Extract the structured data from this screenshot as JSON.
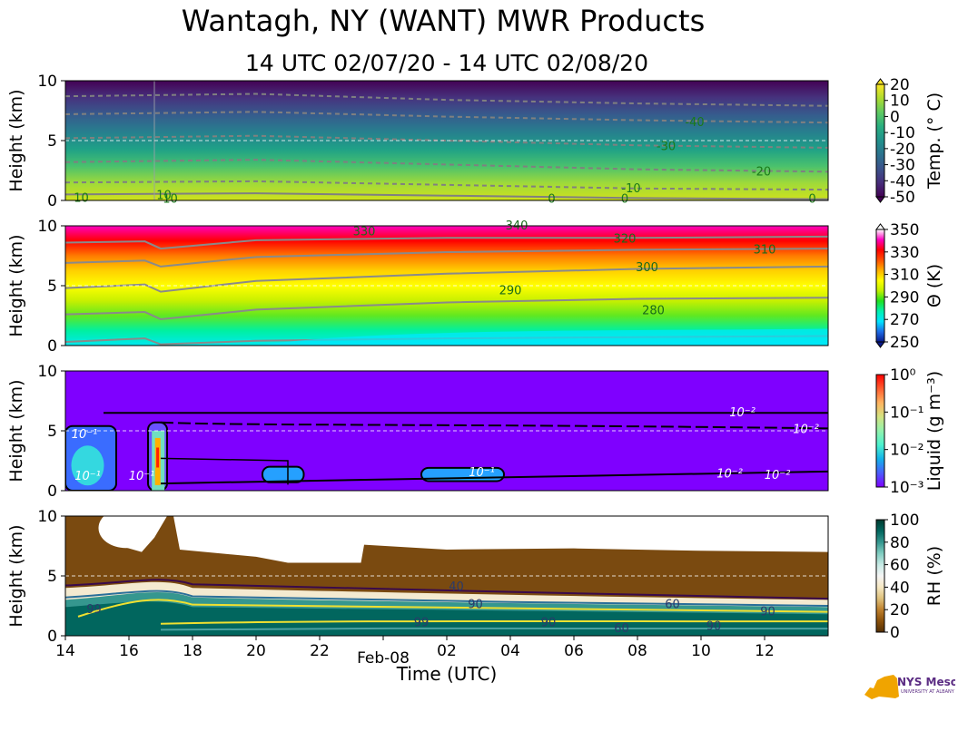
{
  "figure": {
    "title": "Wantagh, NY (WANT) MWR Products",
    "subtitle": "14 UTC 02/07/20 - 14 UTC 02/08/20",
    "xlabel": "Time (UTC)",
    "xticks": [
      "14",
      "16",
      "18",
      "20",
      "22",
      "Feb-08",
      "02",
      "04",
      "06",
      "08",
      "10",
      "12"
    ],
    "logo_text": "NYS Mesonet",
    "logo_subtext": "UNIVERSITY AT ALBANY"
  },
  "chart_data": [
    {
      "type": "heatmap",
      "id": "temperature",
      "ylabel": "Height (km)",
      "yticks": [
        "0",
        "5",
        "10"
      ],
      "ylim": [
        0,
        10
      ],
      "colorbar_label": "Temp. (° C)",
      "colorbar_ticks": [
        "20",
        "10",
        "0",
        "-10",
        "-20",
        "-30",
        "-40",
        "-50"
      ],
      "colorbar_range": [
        -50,
        20
      ],
      "colors": [
        "#440154",
        "#472d7b",
        "#3b528b",
        "#2c728e",
        "#21918c",
        "#28ae80",
        "#5ec962",
        "#addc30",
        "#fde725"
      ],
      "contour_labels": [
        {
          "text": "10",
          "t": 0.5,
          "h": 0.2
        },
        {
          "text": "10",
          "t": 3.1,
          "h": 0.4
        },
        {
          "text": "10",
          "t": 3.3,
          "h": 0.1
        },
        {
          "text": "0",
          "t": 15.3,
          "h": 0.1
        },
        {
          "text": "0",
          "t": 17.6,
          "h": 0.1
        },
        {
          "text": "0",
          "t": 23.5,
          "h": 0.1
        },
        {
          "text": "-10",
          "t": 17.8,
          "h": 1.0
        },
        {
          "text": "-20",
          "t": 21.9,
          "h": 2.4
        },
        {
          "text": "-30",
          "t": 18.9,
          "h": 4.5
        },
        {
          "text": "-40",
          "t": 19.8,
          "h": 6.5
        }
      ]
    },
    {
      "type": "heatmap",
      "id": "theta",
      "ylabel": "Height (km)",
      "yticks": [
        "0",
        "5",
        "10"
      ],
      "ylim": [
        0,
        10
      ],
      "colorbar_label": "Θ (K)",
      "colorbar_ticks": [
        "350",
        "330",
        "310",
        "290",
        "270",
        "250"
      ],
      "colorbar_range": [
        250,
        360
      ],
      "colors": [
        "#0a1a8a",
        "#1e6be6",
        "#00e5ff",
        "#00f0b0",
        "#20e020",
        "#c0f000",
        "#ffff00",
        "#ffb000",
        "#ff5000",
        "#ff0000",
        "#ff00c0",
        "#ffffff"
      ],
      "contour_labels": [
        {
          "text": "280",
          "t": 18.5,
          "h": 2.9
        },
        {
          "text": "290",
          "t": 14.0,
          "h": 4.6
        },
        {
          "text": "300",
          "t": 18.3,
          "h": 6.5
        },
        {
          "text": "310",
          "t": 22.0,
          "h": 8.0
        },
        {
          "text": "320",
          "t": 17.6,
          "h": 8.9
        },
        {
          "text": "330",
          "t": 9.4,
          "h": 9.5
        },
        {
          "text": "340",
          "t": 14.2,
          "h": 10.0
        }
      ]
    },
    {
      "type": "heatmap",
      "id": "liquid",
      "ylabel": "Height (km)",
      "yticks": [
        "0",
        "5",
        "10"
      ],
      "ylim": [
        0,
        10
      ],
      "colorbar_label": "Liquid (g m⁻³)",
      "colorbar_ticks": [
        "10⁰",
        "10⁻¹",
        "10⁻²",
        "10⁻³"
      ],
      "colorbar_range": [
        "1e-3",
        "1e0"
      ],
      "colors": [
        "#7f00ff",
        "#4b5dfc",
        "#13b3ea",
        "#4cf2ce",
        "#92f2ad",
        "#d4e381",
        "#ffb360",
        "#ff5d2f",
        "#ff0000"
      ],
      "contour_labels": [
        {
          "text": "10⁻¹",
          "t": 0.6,
          "h": 4.7
        },
        {
          "text": "10⁻¹",
          "t": 0.7,
          "h": 1.2
        },
        {
          "text": "10⁻¹",
          "t": 2.4,
          "h": 1.2
        },
        {
          "text": "10⁻¹",
          "t": 13.1,
          "h": 1.5
        },
        {
          "text": "10⁻²",
          "t": 21.3,
          "h": 6.5
        },
        {
          "text": "10⁻²",
          "t": 23.3,
          "h": 5.1
        },
        {
          "text": "10⁻²",
          "t": 20.9,
          "h": 1.4
        },
        {
          "text": "10⁻²",
          "t": 22.4,
          "h": 1.3
        }
      ]
    },
    {
      "type": "heatmap",
      "id": "rh",
      "ylabel": "Height (km)",
      "yticks": [
        "0",
        "5",
        "10"
      ],
      "ylim": [
        0,
        10
      ],
      "colorbar_label": "RH (%)",
      "colorbar_ticks": [
        "100",
        "80",
        "60",
        "40",
        "20",
        "0"
      ],
      "colorbar_range": [
        0,
        105
      ],
      "colors": [
        "#543005",
        "#8c510a",
        "#bf812d",
        "#dfc27d",
        "#f6e8c3",
        "#f5f5f5",
        "#c7eae5",
        "#80cdc1",
        "#35978f",
        "#01665e",
        "#003c30"
      ],
      "contour_labels": [
        {
          "text": "40",
          "t": 12.3,
          "h": 4.1
        },
        {
          "text": "90",
          "t": 12.9,
          "h": 2.6
        },
        {
          "text": "99",
          "t": 0.9,
          "h": 2.2
        },
        {
          "text": "99",
          "t": 11.2,
          "h": 1.1
        },
        {
          "text": "90",
          "t": 15.2,
          "h": 1.1
        },
        {
          "text": "60",
          "t": 19.1,
          "h": 2.6
        },
        {
          "text": "60",
          "t": 17.5,
          "h": 0.6
        },
        {
          "text": "90",
          "t": 20.4,
          "h": 0.8
        },
        {
          "text": "90",
          "t": 22.1,
          "h": 2.0
        }
      ]
    }
  ]
}
